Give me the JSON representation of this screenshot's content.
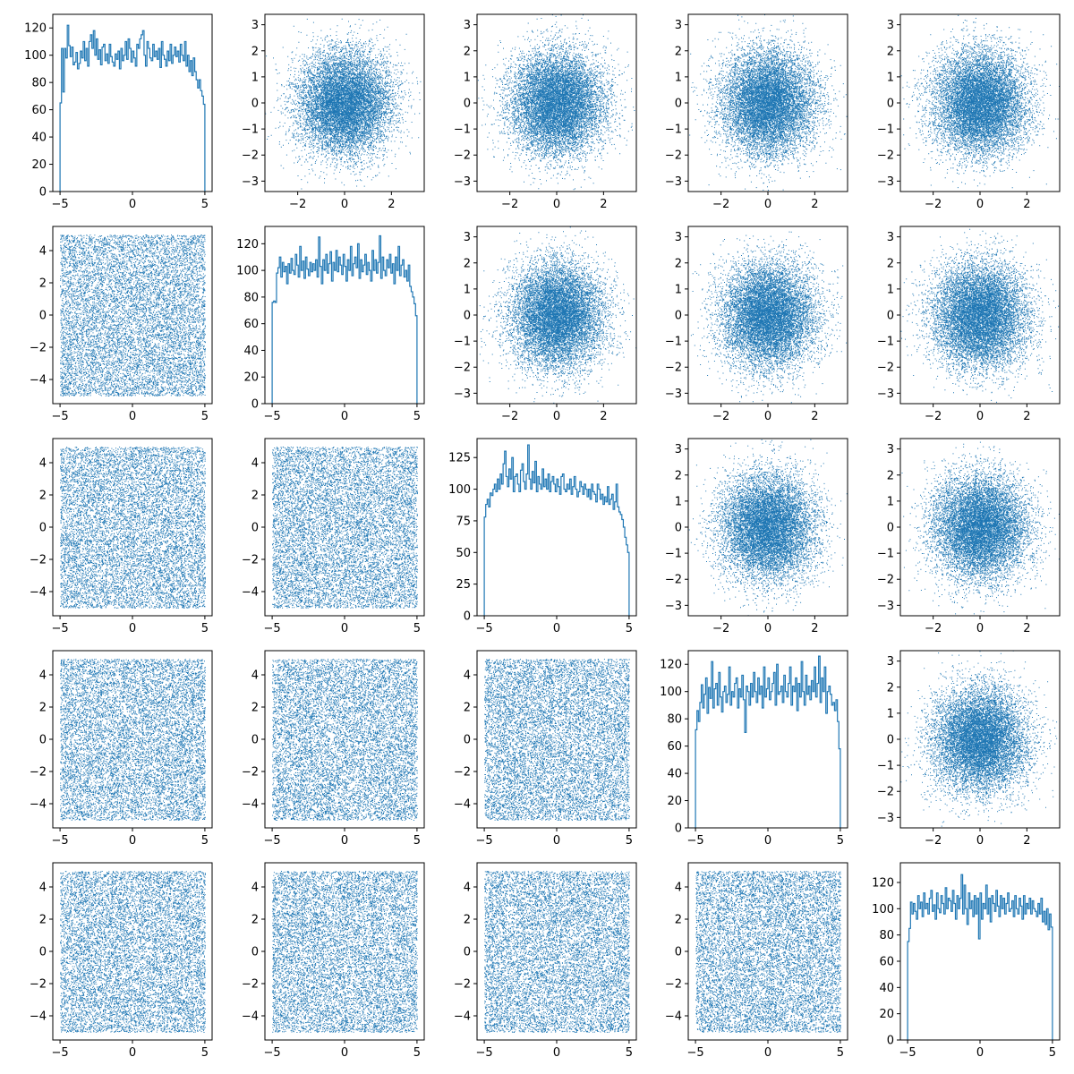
{
  "chart_data": {
    "type": "pairplot",
    "n": 5,
    "series_color": "#1f77b4",
    "grid": false,
    "bins": 100,
    "points_per_panel": 10000,
    "diagonal": [
      {
        "type": "histogram",
        "xlim": [
          -5.5,
          5.5
        ],
        "ylim": [
          0,
          130
        ],
        "xticks": [
          -5,
          0,
          5
        ],
        "yticks": [
          0,
          20,
          40,
          60,
          80,
          100,
          120
        ],
        "bin_range": [
          -5,
          5
        ],
        "counts": [
          65,
          105,
          73,
          105,
          98,
          122,
          107,
          99,
          106,
          93,
          95,
          102,
          90,
          94,
          103,
          98,
          110,
          96,
          105,
          92,
          110,
          115,
          105,
          118,
          100,
          112,
          97,
          104,
          93,
          106,
          108,
          96,
          101,
          94,
          108,
          99,
          95,
          92,
          101,
          97,
          103,
          90,
          105,
          96,
          100,
          110,
          97,
          112,
          105,
          95,
          103,
          98,
          92,
          108,
          105,
          112,
          115,
          118,
          100,
          92,
          110,
          105,
          98,
          96,
          108,
          99,
          103,
          97,
          105,
          91,
          110,
          100,
          97,
          92,
          103,
          96,
          108,
          94,
          100,
          106,
          99,
          103,
          95,
          108,
          100,
          96,
          110,
          92,
          100,
          88,
          96,
          85,
          98,
          88,
          82,
          76,
          82,
          74,
          70,
          64
        ]
      },
      {
        "type": "histogram",
        "xlim": [
          -5.5,
          5.5
        ],
        "ylim": [
          0,
          133
        ],
        "xticks": [
          -5,
          0,
          5
        ],
        "yticks": [
          0,
          20,
          40,
          60,
          80,
          100,
          120
        ],
        "bin_range": [
          -5,
          5
        ],
        "counts": [
          76,
          77,
          76,
          98,
          102,
          110,
          95,
          106,
          99,
          103,
          90,
          105,
          98,
          109,
          100,
          97,
          112,
          104,
          95,
          118,
          100,
          107,
          94,
          110,
          101,
          96,
          106,
          99,
          105,
          100,
          108,
          95,
          125,
          103,
          90,
          108,
          100,
          112,
          98,
          105,
          114,
          92,
          106,
          100,
          115,
          99,
          110,
          104,
          97,
          112,
          103,
          92,
          108,
          100,
          118,
          96,
          105,
          110,
          102,
          120,
          94,
          108,
          99,
          104,
          112,
          97,
          106,
          100,
          92,
          115,
          100,
          108,
          98,
          106,
          126,
          94,
          110,
          100,
          96,
          108,
          102,
          112,
          98,
          105,
          90,
          110,
          100,
          118,
          96,
          104,
          108,
          95,
          100,
          92,
          104,
          88,
          84,
          80,
          75,
          66
        ]
      },
      {
        "type": "histogram",
        "xlim": [
          -5.5,
          5.5
        ],
        "ylim": [
          0,
          140
        ],
        "xticks": [
          -5,
          0,
          5
        ],
        "yticks": [
          0,
          25,
          50,
          75,
          100,
          125
        ],
        "bin_range": [
          -5,
          5
        ],
        "counts": [
          78,
          88,
          92,
          86,
          97,
          95,
          100,
          104,
          98,
          108,
          100,
          112,
          104,
          120,
          130,
          110,
          102,
          116,
          108,
          125,
          98,
          110,
          112,
          104,
          98,
          115,
          120,
          106,
          100,
          112,
          135,
          108,
          100,
          114,
          105,
          122,
          98,
          110,
          104,
          100,
          116,
          102,
          108,
          100,
          112,
          98,
          106,
          110,
          104,
          98,
          108,
          102,
          96,
          110,
          112,
          100,
          98,
          104,
          100,
          108,
          96,
          102,
          110,
          100,
          94,
          98,
          106,
          102,
          96,
          104,
          100,
          94,
          100,
          92,
          104,
          98,
          96,
          90,
          104,
          100,
          92,
          96,
          88,
          94,
          90,
          102,
          88,
          92,
          96,
          84,
          90,
          104,
          86,
          82,
          80,
          76,
          70,
          62,
          56,
          50
        ]
      },
      {
        "type": "histogram",
        "xlim": [
          -5.5,
          5.5
        ],
        "ylim": [
          0,
          130
        ],
        "xticks": [
          -5,
          0,
          5
        ],
        "yticks": [
          0,
          20,
          40,
          60,
          80,
          100,
          120
        ],
        "bin_range": [
          -5,
          5
        ],
        "counts": [
          72,
          86,
          78,
          92,
          105,
          88,
          98,
          110,
          84,
          103,
          95,
          122,
          88,
          102,
          106,
          90,
          114,
          96,
          85,
          100,
          104,
          92,
          98,
          118,
          90,
          100,
          96,
          106,
          110,
          88,
          102,
          96,
          112,
          94,
          70,
          104,
          100,
          90,
          106,
          96,
          114,
          100,
          92,
          110,
          98,
          104,
          88,
          118,
          96,
          102,
          110,
          94,
          100,
          106,
          114,
          90,
          120,
          98,
          100,
          104,
          92,
          112,
          100,
          96,
          106,
          118,
          90,
          104,
          100,
          110,
          86,
          106,
          96,
          122,
          100,
          90,
          112,
          98,
          104,
          94,
          108,
          100,
          118,
          96,
          106,
          126,
          92,
          110,
          100,
          118,
          84,
          100,
          104,
          98,
          90,
          92,
          86,
          94,
          78,
          58
        ]
      },
      {
        "type": "histogram",
        "xlim": [
          -5.5,
          5.5
        ],
        "ylim": [
          0,
          135
        ],
        "xticks": [
          -5,
          0,
          5
        ],
        "yticks": [
          0,
          20,
          40,
          60,
          80,
          100,
          120
        ],
        "bin_range": [
          -5,
          5
        ],
        "counts": [
          75,
          85,
          105,
          96,
          104,
          98,
          92,
          110,
          100,
          105,
          94,
          112,
          100,
          104,
          96,
          108,
          114,
          98,
          103,
          92,
          112,
          100,
          97,
          110,
          104,
          96,
          116,
          100,
          108,
          106,
          98,
          114,
          104,
          92,
          110,
          100,
          108,
          126,
          96,
          118,
          100,
          88,
          112,
          100,
          106,
          94,
          110,
          96,
          108,
          77,
          112,
          92,
          104,
          100,
          118,
          96,
          108,
          90,
          110,
          104,
          98,
          114,
          102,
          94,
          110,
          100,
          108,
          96,
          104,
          112,
          98,
          100,
          106,
          94,
          110,
          100,
          96,
          108,
          102,
          92,
          110,
          96,
          104,
          100,
          108,
          96,
          106,
          100,
          98,
          94,
          104,
          96,
          108,
          90,
          98,
          88,
          100,
          84,
          96,
          86
        ]
      }
    ],
    "offdiagonal": {
      "below": {
        "type": "scatter",
        "distribution": "uniform",
        "x_range": [
          -5,
          5
        ],
        "y_range": [
          -5,
          5
        ],
        "xlim": [
          -5.5,
          5.5
        ],
        "ylim": [
          -5.5,
          5.5
        ],
        "xticks": [
          -5,
          0,
          5
        ],
        "yticks": [
          -4,
          -2,
          0,
          2,
          4
        ]
      },
      "above": {
        "type": "scatter",
        "distribution": "normal",
        "mean": 0,
        "std": 1,
        "xlim": [
          -3.4,
          3.4
        ],
        "ylim": [
          -3.4,
          3.4
        ],
        "xticks": [
          -2,
          0,
          2
        ],
        "yticks": [
          -3,
          -2,
          -1,
          0,
          1,
          2,
          3
        ]
      }
    }
  }
}
